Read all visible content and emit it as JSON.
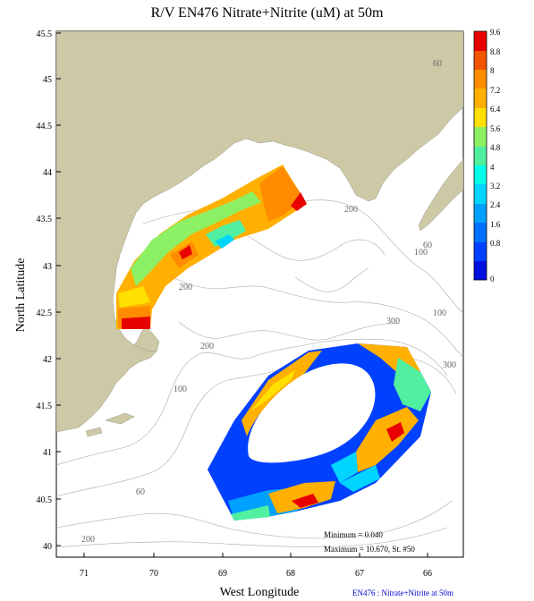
{
  "map": {
    "title": "R/V EN476 Nitrate+Nitrite (uM) at 50m",
    "xlabel": "West Longitude",
    "ylabel": "North Latitude",
    "x_ticks": [
      "71",
      "70",
      "69",
      "68",
      "67",
      "66"
    ],
    "y_ticks": [
      "45.5",
      "45",
      "44.5",
      "44",
      "43.5",
      "43",
      "42.5",
      "42",
      "41.5",
      "41",
      "40.5",
      "40"
    ],
    "contour_labels": [
      "60",
      "200",
      "100",
      "200",
      "60",
      "100",
      "300",
      "300",
      "200",
      "100",
      "60",
      "200"
    ],
    "minimum_text": "Minimum = 0.040",
    "maximum_text": "Maximum = 10.670, St. #50",
    "caption": "EN476 : Nitrate+Nitrite at 50m",
    "colorbar_labels": [
      "9.6",
      "8.8",
      "8",
      "7.2",
      "6.4",
      "5.6",
      "4.8",
      "4",
      "3.2",
      "2.4",
      "1.6",
      "0.8",
      "0"
    ],
    "colorbar_colors": [
      "#e80000",
      "#f25500",
      "#ff8c00",
      "#ffb000",
      "#ffe000",
      "#8cf064",
      "#50f0a0",
      "#00ffe8",
      "#00d4ff",
      "#00a0ff",
      "#0070ff",
      "#0040ff",
      "#0010e0"
    ],
    "land_color": "#cdc9a6"
  }
}
